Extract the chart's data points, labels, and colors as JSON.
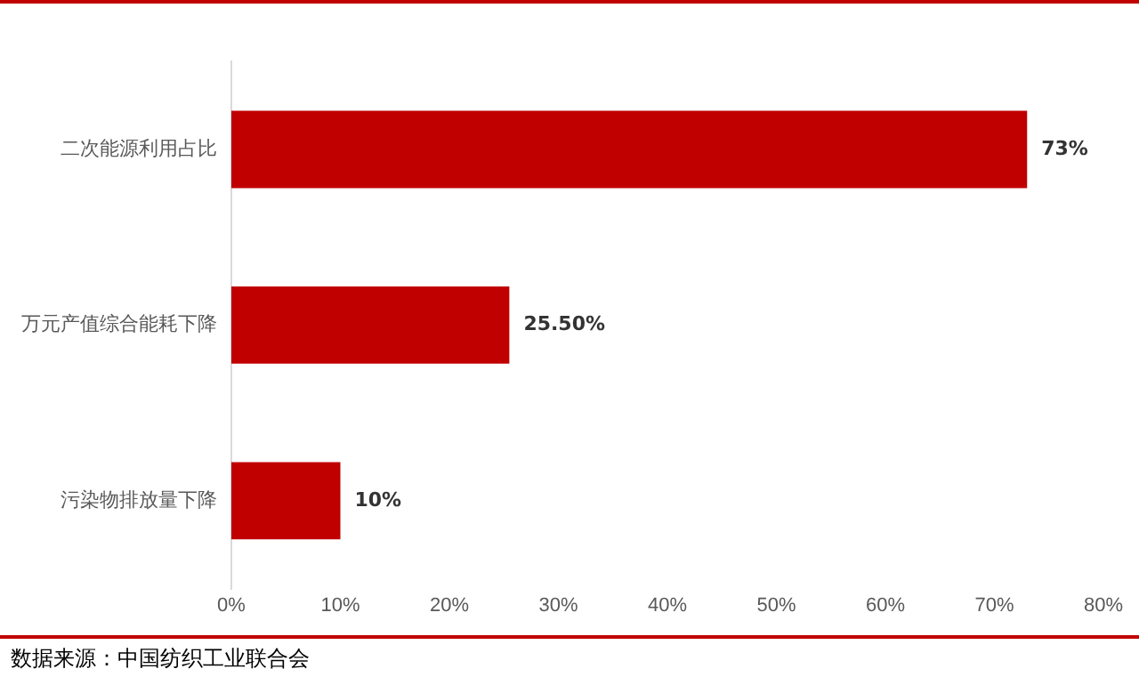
{
  "chart_data": {
    "type": "bar",
    "orientation": "horizontal",
    "categories": [
      "二次能源利用占比",
      "万元产值综合能耗下降",
      "污染物排放量下降"
    ],
    "values": [
      73,
      25.5,
      10
    ],
    "color": "#c00000",
    "value_labels": [
      "73%",
      "25.50%",
      "10%"
    ],
    "xlim": [
      0,
      80
    ],
    "xticks": [
      {
        "value": 0,
        "label": "0%"
      },
      {
        "value": 10,
        "label": "10%"
      },
      {
        "value": 20,
        "label": "20%"
      },
      {
        "value": 30,
        "label": "30%"
      },
      {
        "value": 40,
        "label": "40%"
      },
      {
        "value": 50,
        "label": "50%"
      },
      {
        "value": 60,
        "label": "60%"
      },
      {
        "value": 70,
        "label": "70%"
      },
      {
        "value": 80,
        "label": "80%"
      }
    ],
    "grid": false,
    "legend": false,
    "annotations": [
      "数据来源：中国纺织工业联合会"
    ]
  }
}
